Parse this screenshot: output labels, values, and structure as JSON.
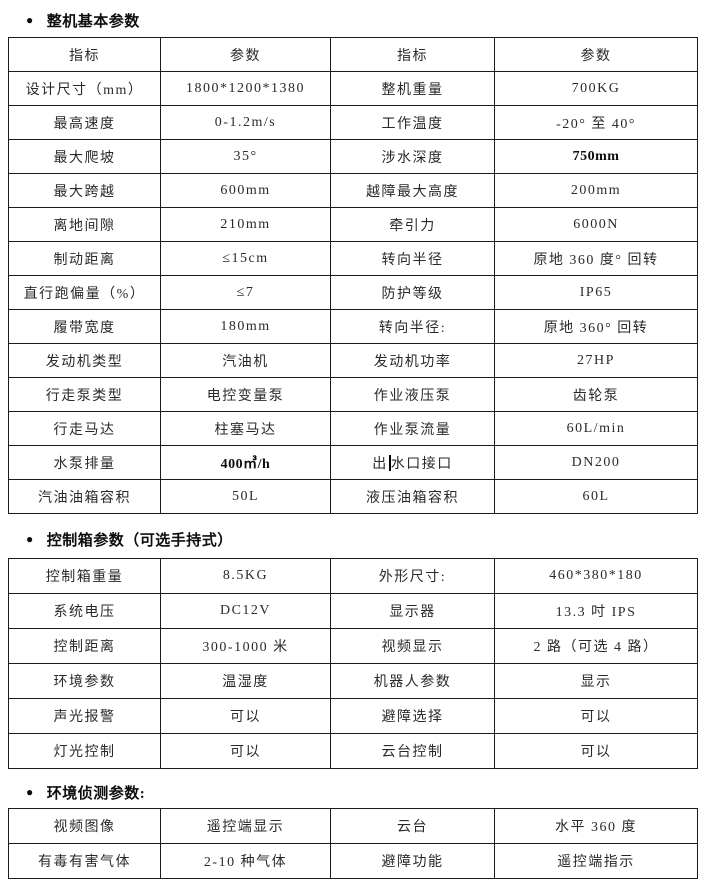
{
  "page": {
    "background": "#ffffff",
    "text_color": "#2a2a2a",
    "border_color": "#1c1c1c"
  },
  "sections": [
    {
      "bullet": "●",
      "title": "整机基本参数",
      "table": {
        "header": [
          "指标",
          "参数",
          "指标",
          "参数"
        ],
        "rows": [
          [
            "设计尺寸（mm）",
            "1800*1200*1380",
            "整机重量",
            "700KG"
          ],
          [
            "最高速度",
            "0-1.2m/s",
            "工作温度",
            "-20° 至 40°"
          ],
          [
            "最大爬坡",
            "35°",
            "涉水深度",
            "750mm"
          ],
          [
            "最大跨越",
            "600mm",
            "越障最大高度",
            "200mm"
          ],
          [
            "离地间隙",
            "210mm",
            "牵引力",
            "6000N"
          ],
          [
            "制动距离",
            "≤15cm",
            "转向半径",
            "原地 360 度° 回转"
          ],
          [
            "直行跑偏量（%）",
            "≤7",
            "防护等级",
            "IP65"
          ],
          [
            "履带宽度",
            "180mm",
            "转向半径:",
            "原地 360° 回转"
          ],
          [
            "发动机类型",
            "汽油机",
            "发动机功率",
            "27HP"
          ],
          [
            "行走泵类型",
            "电控变量泵",
            "作业液压泵",
            "齿轮泵"
          ],
          [
            "行走马达",
            "柱塞马达",
            "作业泵流量",
            "60L/min"
          ],
          [
            "水泵排量",
            "400㎥/h",
            "出水口接口",
            "DN200"
          ],
          [
            "汽油油箱容积",
            "50L",
            "液压油箱容积",
            "60L"
          ]
        ],
        "bold_cells": [
          [
            2,
            3
          ],
          [
            11,
            1
          ]
        ],
        "cursor": {
          "row": 11,
          "col": 2,
          "after_char": 1
        }
      }
    },
    {
      "bullet": "●",
      "title": "控制箱参数（可选手持式）",
      "table": {
        "rows": [
          [
            "控制箱重量",
            "8.5KG",
            "外形尺寸:",
            "460*380*180"
          ],
          [
            "系统电压",
            "DC12V",
            "显示器",
            "13.3 吋 IPS"
          ],
          [
            "控制距离",
            "300-1000 米",
            "视频显示",
            "2 路（可选 4 路）"
          ],
          [
            "环境参数",
            "温湿度",
            "机器人参数",
            "显示"
          ],
          [
            "声光报警",
            "可以",
            "避障选择",
            "可以"
          ],
          [
            "灯光控制",
            "可以",
            "云台控制",
            "可以"
          ]
        ]
      }
    },
    {
      "bullet": "●",
      "title": "环境侦测参数:",
      "table": {
        "rows": [
          [
            "视频图像",
            "遥控端显示",
            "云台",
            "水平 360 度"
          ],
          [
            "有毒有害气体",
            "2-10 种气体",
            "避障功能",
            "遥控端指示"
          ]
        ]
      }
    }
  ]
}
